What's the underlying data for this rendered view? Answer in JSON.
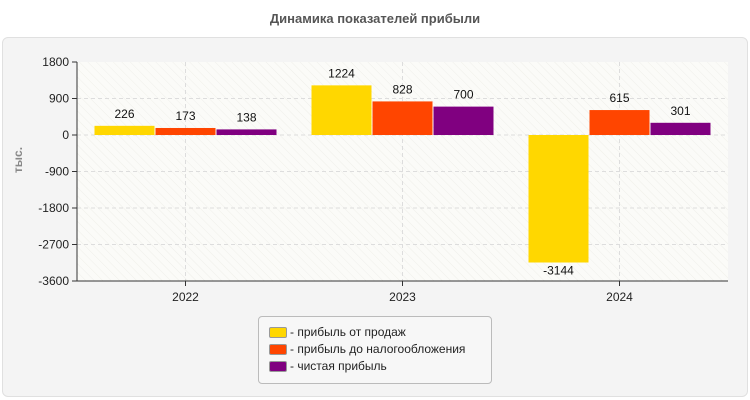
{
  "chart_data": {
    "type": "bar",
    "title": "Динамика показателей прибыли",
    "ylabel": "тыс.",
    "xlabel": "",
    "categories": [
      "2022",
      "2023",
      "2024"
    ],
    "ylim": [
      -3600,
      1800
    ],
    "yticks": [
      1800,
      900,
      0,
      -900,
      -1800,
      -2700,
      -3600
    ],
    "grid": true,
    "legend_position": "bottom",
    "series": [
      {
        "name": "- прибыль от продаж",
        "color": "#FFD700",
        "values": [
          226,
          1224,
          -3144
        ]
      },
      {
        "name": "- прибыль до налогообложения",
        "color": "#FF4500",
        "values": [
          173,
          828,
          615
        ]
      },
      {
        "name": "- чистая прибыль",
        "color": "#800080",
        "values": [
          138,
          700,
          301
        ]
      }
    ]
  }
}
